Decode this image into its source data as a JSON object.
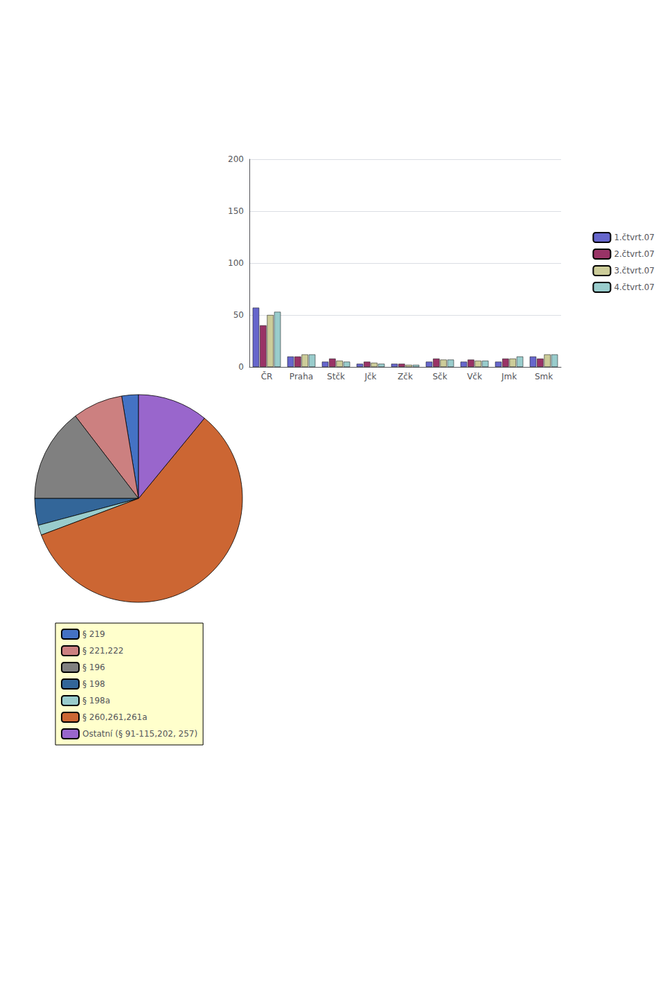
{
  "chart_data": [
    {
      "type": "bar",
      "categories": [
        "ČR",
        "Praha",
        "Stčk",
        "Jčk",
        "Zčk",
        "Sčk",
        "Včk",
        "Jmk",
        "Smk"
      ],
      "series": [
        {
          "name": "1.čtvrt.07",
          "color": "#6666cc",
          "values": [
            57,
            10,
            5,
            3,
            3,
            5,
            5,
            5,
            10
          ]
        },
        {
          "name": "2.čtvrt.07",
          "color": "#993366",
          "values": [
            40,
            10,
            8,
            5,
            3,
            8,
            7,
            8,
            8
          ]
        },
        {
          "name": "3.čtvrt.07",
          "color": "#cccc99",
          "values": [
            50,
            12,
            6,
            4,
            2,
            7,
            6,
            8,
            12
          ]
        },
        {
          "name": "4.čtvrt.07",
          "color": "#99cccc",
          "values": [
            53,
            12,
            5,
            3,
            2,
            7,
            6,
            10,
            12
          ]
        }
      ],
      "ylim": [
        0,
        200
      ],
      "yticks": [
        0,
        50,
        100,
        150,
        200
      ],
      "grid": true,
      "legend": "right"
    },
    {
      "type": "pie",
      "categories": [
        "§ 219",
        "§ 221,222",
        "§ 196",
        "§ 198",
        "§ 198a",
        "§ 260,261,261a",
        "Ostatní (§ 91-115,202, 257)"
      ],
      "values": [
        5,
        15,
        28,
        8,
        3,
        112,
        21
      ],
      "colors": [
        "#4472c4",
        "#cc8080",
        "#808080",
        "#336699",
        "#99cccc",
        "#cc6633",
        "#9966cc"
      ],
      "legend": "bottom"
    }
  ]
}
